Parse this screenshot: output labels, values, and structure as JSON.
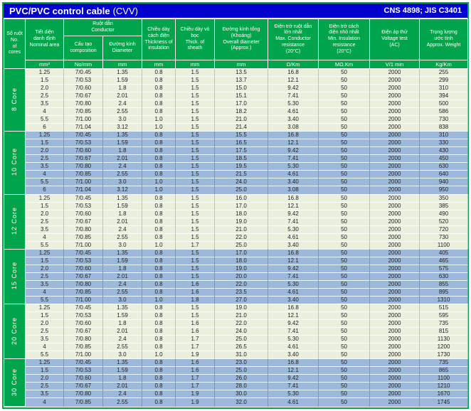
{
  "title": {
    "main": "PVC/PVC control cable",
    "suffix": "(CVV)",
    "standard": "CNS 4898; JIS C3401"
  },
  "colors": {
    "title_bar_blue": "#0101CE",
    "header_green": "#00A44A",
    "row_light_green": "#EAEFDE",
    "row_highlight_blue": "#9CB8DB"
  },
  "table": {
    "header": {
      "cores": "Số ruột\nNo.\nof\ncores",
      "nominal_area": "Tiết diện\ndanh định\nNominal area",
      "conductor": "Ruột dẫn\nConductor",
      "composition": "Cấu tạo\ncomposition",
      "diameter": "Đường kính\nDiameter",
      "insulation": "Chiều dày\ncách điện\nThickness of\ninsulation",
      "sheath": "Chiều dày vỏ\nbọc\nThick. of\nsheath",
      "overall_diameter": "Đường kính tổng\n(Khoảng)\nOverall diameter\n(Approx.)",
      "max_resistance": "Điện trở ruột dẫn\nlớn nhất\nMax. Conductor\nresistance\n(20°C)",
      "min_resistance": "Điện trở cách\nđiện nhỏ nhất\nMin. Insulation\nresistance\n(20°C)",
      "voltage_test": "Điện áp thử\nVoltage test\n(AC)",
      "weight": "Trọng lượng\nước tính\nApprox. Weight"
    },
    "units": [
      "mm²",
      "No/mm",
      "mm",
      "mm",
      "mm",
      "mm",
      "Ω/Km",
      "MΩ.Km",
      "V/1 min",
      "Kg/Km"
    ],
    "groups": [
      {
        "label": "8 Core",
        "highlighted": false,
        "rows": [
          [
            "1.25",
            "7/0.45",
            "1.35",
            "0.8",
            "1.5",
            "13.5",
            "16.8",
            "50",
            "2000",
            "255"
          ],
          [
            "1.5",
            "7/0.53",
            "1.59",
            "0.8",
            "1.5",
            "13.7",
            "12.1",
            "50",
            "2000",
            "299"
          ],
          [
            "2.0",
            "7/0.60",
            "1.8",
            "0.8",
            "1.5",
            "15.0",
            "9.42",
            "50",
            "2000",
            "310"
          ],
          [
            "2.5",
            "7/0.67",
            "2.01",
            "0.8",
            "1.5",
            "15.1",
            "7.41",
            "50",
            "2000",
            "394"
          ],
          [
            "3.5",
            "7/0.80",
            "2.4",
            "0.8",
            "1.5",
            "17.0",
            "5.30",
            "50",
            "2000",
            "500"
          ],
          [
            "4",
            "7/0.85",
            "2.55",
            "0.8",
            "1.5",
            "18.2",
            "4.61",
            "50",
            "2000",
            "586"
          ],
          [
            "5.5",
            "7/1.00",
            "3.0",
            "1.0",
            "1.5",
            "21.0",
            "3.40",
            "50",
            "2000",
            "730"
          ],
          [
            "6",
            "7/1.04",
            "3.12",
            "1.0",
            "1.5",
            "21.4",
            "3.08",
            "50",
            "2000",
            "838"
          ]
        ]
      },
      {
        "label": "10 Core",
        "highlighted": true,
        "rows": [
          [
            "1.25",
            "7/0.45",
            "1.35",
            "0.8",
            "1.5",
            "15.5",
            "16.8",
            "50",
            "2000",
            "310"
          ],
          [
            "1.5",
            "7/0.53",
            "1.59",
            "0.8",
            "1.5",
            "16.5",
            "12.1",
            "50",
            "2000",
            "330"
          ],
          [
            "2.0",
            "7/0.60",
            "1.8",
            "0.8",
            "1.5",
            "17.5",
            "9.42",
            "50",
            "2000",
            "430"
          ],
          [
            "2.5",
            "7/0.67",
            "2.01",
            "0.8",
            "1.5",
            "18.5",
            "7.41",
            "50",
            "2000",
            "450"
          ],
          [
            "3.5",
            "7/0.80",
            "2.4",
            "0.8",
            "1.5",
            "19.5",
            "5.30",
            "50",
            "2000",
            "630"
          ],
          [
            "4",
            "7/0.85",
            "2.55",
            "0.8",
            "1.5",
            "21.5",
            "4.61",
            "50",
            "2000",
            "640"
          ],
          [
            "5.5",
            "7/1.00",
            "3.0",
            "1.0",
            "1.5",
            "24.0",
            "3.40",
            "50",
            "2000",
            "940"
          ],
          [
            "6",
            "7/1.04",
            "3.12",
            "1.0",
            "1.5",
            "25.0",
            "3.08",
            "50",
            "2000",
            "950"
          ]
        ]
      },
      {
        "label": "12 Core",
        "highlighted": false,
        "rows": [
          [
            "1.25",
            "7/0.45",
            "1.35",
            "0.8",
            "1.5",
            "16.0",
            "16.8",
            "50",
            "2000",
            "350"
          ],
          [
            "1.5",
            "7/0.53",
            "1.59",
            "0.8",
            "1.5",
            "17.0",
            "12.1",
            "50",
            "2000",
            "385"
          ],
          [
            "2.0",
            "7/0.60",
            "1.8",
            "0.8",
            "1.5",
            "18.0",
            "9.42",
            "50",
            "2000",
            "490"
          ],
          [
            "2.5",
            "7/0.67",
            "2.01",
            "0.8",
            "1.5",
            "19.0",
            "7.41",
            "50",
            "2000",
            "520"
          ],
          [
            "3.5",
            "7/0.80",
            "2.4",
            "0.8",
            "1.5",
            "21.0",
            "5.30",
            "50",
            "2000",
            "720"
          ],
          [
            "4",
            "7/0.85",
            "2.55",
            "0.8",
            "1.5",
            "22.0",
            "4.61",
            "50",
            "2000",
            "730"
          ],
          [
            "5.5",
            "7/1.00",
            "3.0",
            "1.0",
            "1.7",
            "25.0",
            "3.40",
            "50",
            "2000",
            "1100"
          ]
        ]
      },
      {
        "label": "15 Core",
        "highlighted": true,
        "rows": [
          [
            "1.25",
            "7/0.45",
            "1.35",
            "0.8",
            "1.5",
            "17.0",
            "16.8",
            "50",
            "2000",
            "405"
          ],
          [
            "1.5",
            "7/0.53",
            "1.59",
            "0.8",
            "1.5",
            "18.0",
            "12.1",
            "50",
            "2000",
            "465"
          ],
          [
            "2.0",
            "7/0.60",
            "1.8",
            "0.8",
            "1.5",
            "19.0",
            "9.42",
            "50",
            "2000",
            "575"
          ],
          [
            "2.5",
            "7/0.67",
            "2.01",
            "0.8",
            "1.5",
            "20.0",
            "7.41",
            "50",
            "2000",
            "630"
          ],
          [
            "3.5",
            "7/0.80",
            "2.4",
            "0.8",
            "1.6",
            "22.0",
            "5.30",
            "50",
            "2000",
            "855"
          ],
          [
            "4",
            "7/0.85",
            "2.55",
            "0.8",
            "1.6",
            "23.5",
            "4.61",
            "50",
            "2000",
            "895"
          ],
          [
            "5.5",
            "7/1.00",
            "3.0",
            "1.0",
            "1.8",
            "27.0",
            "3.40",
            "50",
            "2000",
            "1310"
          ]
        ]
      },
      {
        "label": "20 Core",
        "highlighted": false,
        "rows": [
          [
            "1.25",
            "7/0.45",
            "1.35",
            "0.8",
            "1.5",
            "19.0",
            "16.8",
            "50",
            "2000",
            "515"
          ],
          [
            "1.5",
            "7/0.53",
            "1.59",
            "0.8",
            "1.5",
            "21.0",
            "12.1",
            "50",
            "2000",
            "595"
          ],
          [
            "2.0",
            "7/0.60",
            "1.8",
            "0.8",
            "1.6",
            "22.0",
            "9.42",
            "50",
            "2000",
            "735"
          ],
          [
            "2.5",
            "7/0.67",
            "2.01",
            "0.8",
            "1.6",
            "24.0",
            "7.41",
            "50",
            "2000",
            "815"
          ],
          [
            "3.5",
            "7/0.80",
            "2.4",
            "0.8",
            "1.7",
            "25.0",
            "5.30",
            "50",
            "2000",
            "1130"
          ],
          [
            "4",
            "7/0.85",
            "2.55",
            "0.8",
            "1.7",
            "26.5",
            "4.61",
            "50",
            "2000",
            "1200"
          ],
          [
            "5.5",
            "7/1.00",
            "3.0",
            "1.0",
            "1.9",
            "31.0",
            "3.40",
            "50",
            "2000",
            "1730"
          ]
        ]
      },
      {
        "label": "30 Core",
        "highlighted": true,
        "rows": [
          [
            "1.25",
            "7/0.45",
            "1.35",
            "0.8",
            "1.6",
            "23.0",
            "16.8",
            "50",
            "2000",
            "735"
          ],
          [
            "1.5",
            "7/0.53",
            "1.59",
            "0.8",
            "1.6",
            "25.0",
            "12.1",
            "50",
            "2000",
            "865"
          ],
          [
            "2.0",
            "7/0.60",
            "1.8",
            "0.8",
            "1.7",
            "26.0",
            "9.42",
            "50",
            "2000",
            "1100"
          ],
          [
            "2.5",
            "7/0.67",
            "2.01",
            "0.8",
            "1.7",
            "28.0",
            "7.41",
            "50",
            "2000",
            "1210"
          ],
          [
            "3.5",
            "7/0.80",
            "2.4",
            "0.8",
            "1.9",
            "30.0",
            "5.30",
            "50",
            "2000",
            "1670"
          ],
          [
            "4",
            "7/0.85",
            "2.55",
            "0.8",
            "1.9",
            "32.0",
            "4.61",
            "50",
            "2000",
            "1745"
          ]
        ]
      }
    ]
  }
}
